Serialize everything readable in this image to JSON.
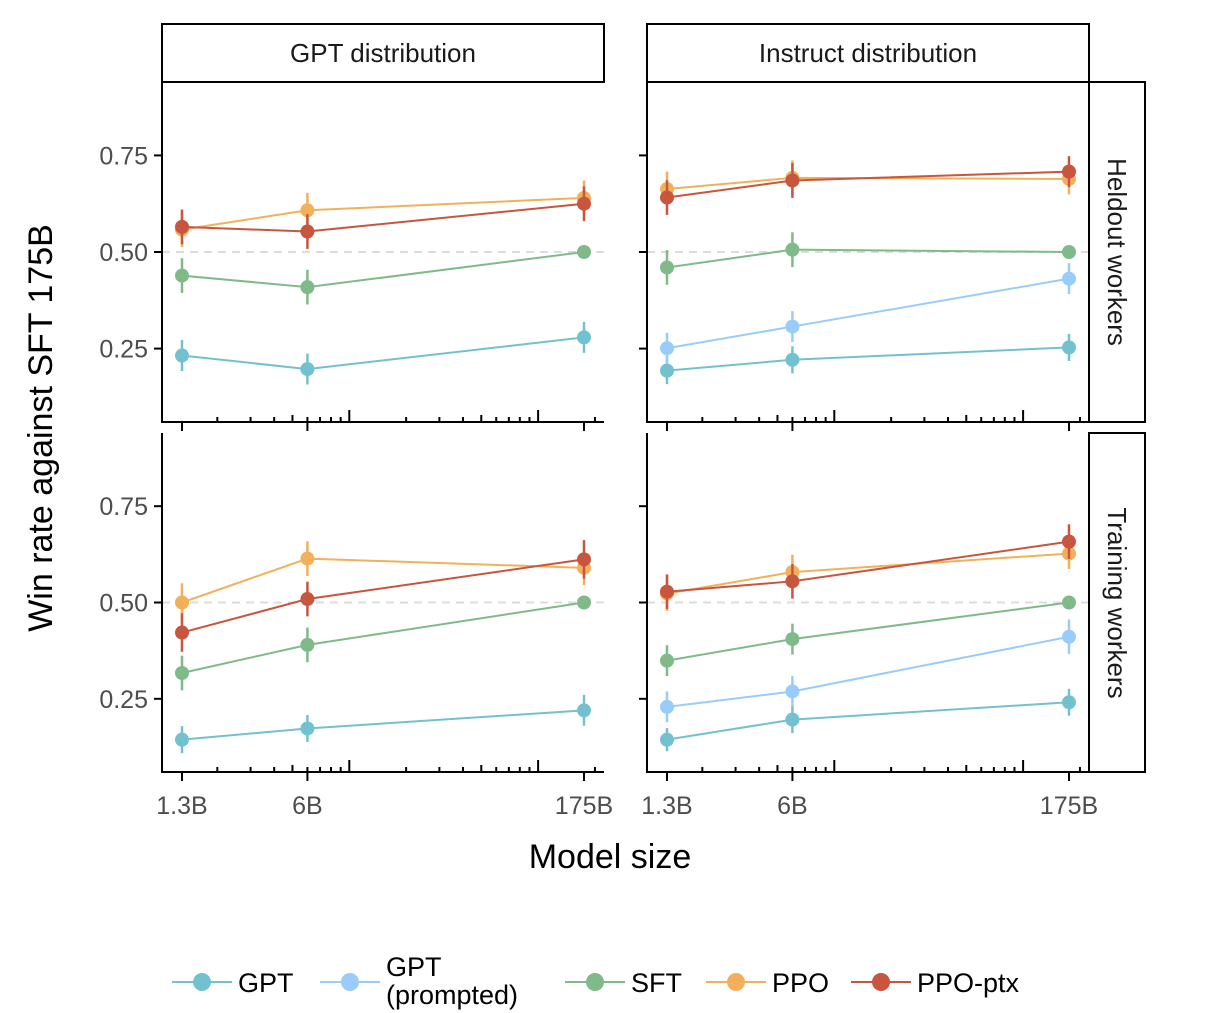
{
  "chart_data": {
    "type": "line",
    "title": "",
    "xlabel": "Model size",
    "ylabel": "Win rate against SFT 175B",
    "x_scale": "log",
    "x": [
      1.3,
      6,
      175
    ],
    "x_tick_labels": [
      "1.3B",
      "6B",
      "175B"
    ],
    "y_ticks": [
      0.25,
      0.5,
      0.75
    ],
    "y_tick_labels": [
      "0.25",
      "0.50",
      "0.75"
    ],
    "ylim": [
      0.06,
      0.94
    ],
    "reference_line": 0.5,
    "grid": false,
    "legend_position": "bottom",
    "column_facets": [
      "GPT distribution",
      "Instruct distribution"
    ],
    "row_facets": [
      "Heldout workers",
      "Training workers"
    ],
    "series_meta": [
      {
        "name": "GPT",
        "label_lines": [
          "GPT"
        ],
        "color": "#72C1CF"
      },
      {
        "name": "GPT (prompted)",
        "label_lines": [
          "GPT",
          "(prompted)"
        ],
        "color": "#99CCFA"
      },
      {
        "name": "SFT",
        "label_lines": [
          "SFT"
        ],
        "color": "#7FBA88"
      },
      {
        "name": "PPO",
        "label_lines": [
          "PPO"
        ],
        "color": "#F2B05A"
      },
      {
        "name": "PPO-ptx",
        "label_lines": [
          "PPO-ptx"
        ],
        "color": "#C8553D"
      }
    ],
    "panels": [
      {
        "row": "Heldout workers",
        "col": "GPT distribution",
        "series": [
          {
            "name": "GPT",
            "values": [
              0.232,
              0.197,
              0.279
            ],
            "err": [
              0.04,
              0.04,
              0.04
            ]
          },
          {
            "name": "SFT",
            "values": [
              0.439,
              0.409,
              0.5
            ],
            "err": [
              0.045,
              0.045,
              0.0
            ]
          },
          {
            "name": "PPO",
            "values": [
              0.558,
              0.608,
              0.64
            ],
            "err": [
              0.045,
              0.045,
              0.045
            ]
          },
          {
            "name": "PPO-ptx",
            "values": [
              0.565,
              0.553,
              0.625
            ],
            "err": [
              0.045,
              0.045,
              0.045
            ]
          }
        ]
      },
      {
        "row": "Heldout workers",
        "col": "Instruct distribution",
        "series": [
          {
            "name": "GPT",
            "values": [
              0.193,
              0.221,
              0.253
            ],
            "err": [
              0.035,
              0.035,
              0.035
            ]
          },
          {
            "name": "GPT (prompted)",
            "values": [
              0.251,
              0.307,
              0.431
            ],
            "err": [
              0.04,
              0.04,
              0.04
            ]
          },
          {
            "name": "SFT",
            "values": [
              0.46,
              0.506,
              0.5
            ],
            "err": [
              0.045,
              0.045,
              0.0
            ]
          },
          {
            "name": "PPO",
            "values": [
              0.663,
              0.692,
              0.689
            ],
            "err": [
              0.045,
              0.045,
              0.04
            ]
          },
          {
            "name": "PPO-ptx",
            "values": [
              0.641,
              0.685,
              0.708
            ],
            "err": [
              0.045,
              0.045,
              0.04
            ]
          }
        ]
      },
      {
        "row": "Training workers",
        "col": "GPT distribution",
        "series": [
          {
            "name": "GPT",
            "values": [
              0.144,
              0.173,
              0.22
            ],
            "err": [
              0.035,
              0.035,
              0.04
            ]
          },
          {
            "name": "SFT",
            "values": [
              0.317,
              0.39,
              0.5
            ],
            "err": [
              0.045,
              0.045,
              0.0
            ]
          },
          {
            "name": "PPO",
            "values": [
              0.5,
              0.614,
              0.59
            ],
            "err": [
              0.05,
              0.045,
              0.045
            ]
          },
          {
            "name": "PPO-ptx",
            "values": [
              0.422,
              0.509,
              0.612
            ],
            "err": [
              0.05,
              0.045,
              0.05
            ]
          }
        ]
      },
      {
        "row": "Training workers",
        "col": "Instruct distribution",
        "series": [
          {
            "name": "GPT",
            "values": [
              0.144,
              0.196,
              0.241
            ],
            "err": [
              0.03,
              0.035,
              0.035
            ]
          },
          {
            "name": "GPT (prompted)",
            "values": [
              0.229,
              0.269,
              0.411
            ],
            "err": [
              0.04,
              0.04,
              0.045
            ]
          },
          {
            "name": "SFT",
            "values": [
              0.349,
              0.405,
              0.5
            ],
            "err": [
              0.04,
              0.04,
              0.0
            ]
          },
          {
            "name": "PPO",
            "values": [
              0.523,
              0.579,
              0.627
            ],
            "err": [
              0.045,
              0.045,
              0.04
            ]
          },
          {
            "name": "PPO-ptx",
            "values": [
              0.528,
              0.555,
              0.658
            ],
            "err": [
              0.045,
              0.045,
              0.045
            ]
          }
        ]
      }
    ]
  }
}
